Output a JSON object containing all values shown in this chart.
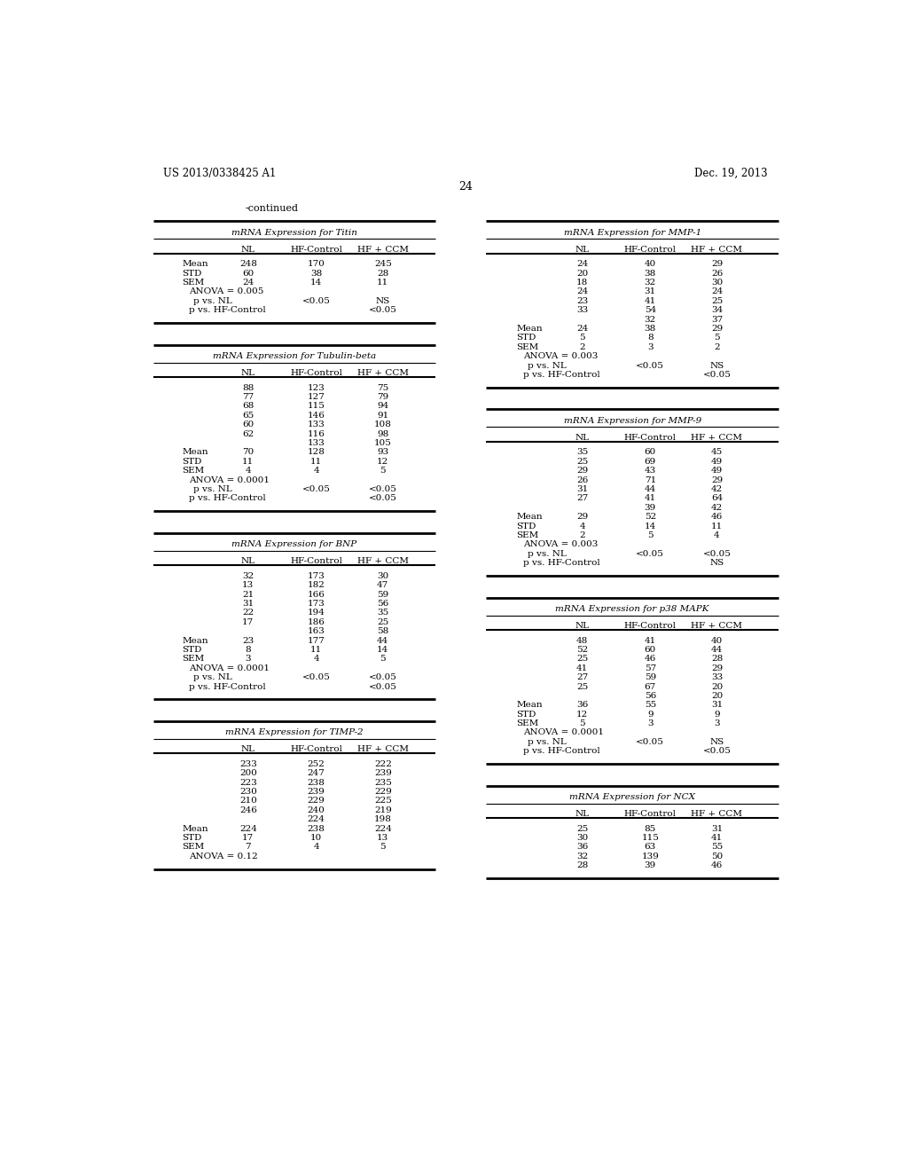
{
  "patent_number": "US 2013/0338425 A1",
  "patent_date": "Dec. 19, 2013",
  "page_number": "24",
  "continued_label": "-continued",
  "background_color": "#ffffff",
  "text_color": "#000000",
  "font_size": 7.5,
  "tables": [
    {
      "title": "mRNA Expression for Titin",
      "col_headers": [
        "NL",
        "HF-Control",
        "HF + CCM"
      ],
      "data_rows": [],
      "stat_rows": [
        [
          "Mean",
          "248",
          "170",
          "245"
        ],
        [
          "STD",
          "60",
          "38",
          "28"
        ],
        [
          "SEM",
          "24",
          "14",
          "11"
        ]
      ],
      "anova": "ANOVA = 0.005",
      "p_vs_NL": [
        "p vs. NL",
        "",
        "<0.05",
        "NS"
      ],
      "p_vs_HF": [
        "p vs. HF-Control",
        "",
        "",
        "<0.05"
      ],
      "position": "left",
      "order": 1
    },
    {
      "title": "mRNA Expression for MMP-1",
      "col_headers": [
        "NL",
        "HF-Control",
        "HF + CCM"
      ],
      "data_rows": [
        [
          "",
          "24",
          "40",
          "29"
        ],
        [
          "",
          "20",
          "38",
          "26"
        ],
        [
          "",
          "18",
          "32",
          "30"
        ],
        [
          "",
          "24",
          "31",
          "24"
        ],
        [
          "",
          "23",
          "41",
          "25"
        ],
        [
          "",
          "33",
          "54",
          "34"
        ],
        [
          "",
          "",
          "32",
          "37"
        ]
      ],
      "stat_rows": [
        [
          "Mean",
          "24",
          "38",
          "29"
        ],
        [
          "STD",
          "5",
          "8",
          "5"
        ],
        [
          "SEM",
          "2",
          "3",
          "2"
        ]
      ],
      "anova": "ANOVA = 0.003",
      "p_vs_NL": [
        "p vs. NL",
        "",
        "<0.05",
        "NS"
      ],
      "p_vs_HF": [
        "p vs. HF-Control",
        "",
        "",
        "<0.05"
      ],
      "position": "right",
      "order": 1
    },
    {
      "title": "mRNA Expression for Tubulin-beta",
      "col_headers": [
        "NL",
        "HF-Control",
        "HF + CCM"
      ],
      "data_rows": [
        [
          "",
          "88",
          "123",
          "75"
        ],
        [
          "",
          "77",
          "127",
          "79"
        ],
        [
          "",
          "68",
          "115",
          "94"
        ],
        [
          "",
          "65",
          "146",
          "91"
        ],
        [
          "",
          "60",
          "133",
          "108"
        ],
        [
          "",
          "62",
          "116",
          "98"
        ],
        [
          "",
          "",
          "133",
          "105"
        ]
      ],
      "stat_rows": [
        [
          "Mean",
          "70",
          "128",
          "93"
        ],
        [
          "STD",
          "11",
          "11",
          "12"
        ],
        [
          "SEM",
          "4",
          "4",
          "5"
        ]
      ],
      "anova": "ANOVA = 0.0001",
      "p_vs_NL": [
        "p vs. NL",
        "",
        "<0.05",
        "<0.05"
      ],
      "p_vs_HF": [
        "p vs. HF-Control",
        "",
        "",
        "<0.05"
      ],
      "position": "left",
      "order": 2
    },
    {
      "title": "mRNA Expression for MMP-9",
      "col_headers": [
        "NL",
        "HF-Control",
        "HF + CCM"
      ],
      "data_rows": [
        [
          "",
          "35",
          "60",
          "45"
        ],
        [
          "",
          "25",
          "69",
          "49"
        ],
        [
          "",
          "29",
          "43",
          "49"
        ],
        [
          "",
          "26",
          "71",
          "29"
        ],
        [
          "",
          "31",
          "44",
          "42"
        ],
        [
          "",
          "27",
          "41",
          "64"
        ],
        [
          "",
          "",
          "39",
          "42"
        ]
      ],
      "stat_rows": [
        [
          "Mean",
          "29",
          "52",
          "46"
        ],
        [
          "STD",
          "4",
          "14",
          "11"
        ],
        [
          "SEM",
          "2",
          "5",
          "4"
        ]
      ],
      "anova": "ANOVA = 0.003",
      "p_vs_NL": [
        "p vs. NL",
        "",
        "<0.05",
        "<0.05"
      ],
      "p_vs_HF": [
        "p vs. HF-Control",
        "",
        "",
        "NS"
      ],
      "position": "right",
      "order": 2
    },
    {
      "title": "mRNA Expression for BNP",
      "col_headers": [
        "NL",
        "HF-Control",
        "HF + CCM"
      ],
      "data_rows": [
        [
          "",
          "32",
          "173",
          "30"
        ],
        [
          "",
          "13",
          "182",
          "47"
        ],
        [
          "",
          "21",
          "166",
          "59"
        ],
        [
          "",
          "31",
          "173",
          "56"
        ],
        [
          "",
          "22",
          "194",
          "35"
        ],
        [
          "",
          "17",
          "186",
          "25"
        ],
        [
          "",
          "",
          "163",
          "58"
        ]
      ],
      "stat_rows": [
        [
          "Mean",
          "23",
          "177",
          "44"
        ],
        [
          "STD",
          "8",
          "11",
          "14"
        ],
        [
          "SEM",
          "3",
          "4",
          "5"
        ]
      ],
      "anova": "ANOVA = 0.0001",
      "p_vs_NL": [
        "p vs. NL",
        "",
        "<0.05",
        "<0.05"
      ],
      "p_vs_HF": [
        "p vs. HF-Control",
        "",
        "",
        "<0.05"
      ],
      "position": "left",
      "order": 3
    },
    {
      "title": "mRNA Expression for p38 MAPK",
      "col_headers": [
        "NL",
        "HF-Control",
        "HF + CCM"
      ],
      "data_rows": [
        [
          "",
          "48",
          "41",
          "40"
        ],
        [
          "",
          "52",
          "60",
          "44"
        ],
        [
          "",
          "25",
          "46",
          "28"
        ],
        [
          "",
          "41",
          "57",
          "29"
        ],
        [
          "",
          "27",
          "59",
          "33"
        ],
        [
          "",
          "25",
          "67",
          "20"
        ],
        [
          "",
          "",
          "56",
          "20"
        ]
      ],
      "stat_rows": [
        [
          "Mean",
          "36",
          "55",
          "31"
        ],
        [
          "STD",
          "12",
          "9",
          "9"
        ],
        [
          "SEM",
          "5",
          "3",
          "3"
        ]
      ],
      "anova": "ANOVA = 0.0001",
      "p_vs_NL": [
        "p vs. NL",
        "",
        "<0.05",
        "NS"
      ],
      "p_vs_HF": [
        "p vs. HF-Control",
        "",
        "",
        "<0.05"
      ],
      "position": "right",
      "order": 3
    },
    {
      "title": "mRNA Expression for TIMP-2",
      "col_headers": [
        "NL",
        "HF-Control",
        "HF + CCM"
      ],
      "data_rows": [
        [
          "",
          "233",
          "252",
          "222"
        ],
        [
          "",
          "200",
          "247",
          "239"
        ],
        [
          "",
          "223",
          "238",
          "235"
        ],
        [
          "",
          "230",
          "239",
          "229"
        ],
        [
          "",
          "210",
          "229",
          "225"
        ],
        [
          "",
          "246",
          "240",
          "219"
        ],
        [
          "",
          "",
          "224",
          "198"
        ]
      ],
      "stat_rows": [
        [
          "Mean",
          "224",
          "238",
          "224"
        ],
        [
          "STD",
          "17",
          "10",
          "13"
        ],
        [
          "SEM",
          "7",
          "4",
          "5"
        ]
      ],
      "anova": "ANOVA = 0.12",
      "p_vs_NL": null,
      "p_vs_HF": null,
      "position": "left",
      "order": 4
    },
    {
      "title": "mRNA Expression for NCX",
      "col_headers": [
        "NL",
        "HF-Control",
        "HF + CCM"
      ],
      "data_rows": [
        [
          "",
          "25",
          "85",
          "31"
        ],
        [
          "",
          "30",
          "115",
          "41"
        ],
        [
          "",
          "36",
          "63",
          "55"
        ],
        [
          "",
          "32",
          "139",
          "50"
        ],
        [
          "",
          "28",
          "39",
          "46"
        ]
      ],
      "stat_rows": [],
      "anova": null,
      "p_vs_NL": null,
      "p_vs_HF": null,
      "position": "right",
      "order": 4
    }
  ]
}
